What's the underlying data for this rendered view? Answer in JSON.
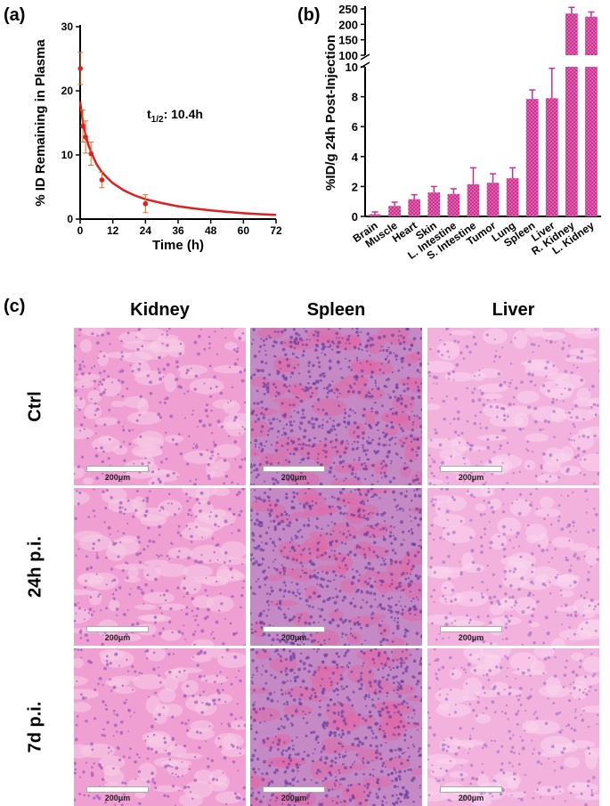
{
  "panels": {
    "a": "(a)",
    "b": "(b)",
    "c": "(c)"
  },
  "chart_data": [
    {
      "type": "line",
      "panel": "(a)",
      "xlabel": "Time (h)",
      "ylabel": "% ID Remaining in Plasma",
      "xlim": [
        0,
        72
      ],
      "ylim": [
        0,
        30
      ],
      "xticks": [
        0,
        12,
        24,
        36,
        48,
        60,
        72
      ],
      "yticks": [
        0,
        10,
        20,
        30
      ],
      "annotation": {
        "prefix": "t",
        "sub": "1/2",
        "suffix": ": 10.4h"
      },
      "points": [
        {
          "x": 0.083,
          "y": 23.5,
          "err": 2.5
        },
        {
          "x": 1,
          "y": 14.5,
          "err": 2.5
        },
        {
          "x": 2,
          "y": 12.8,
          "err": 2.5
        },
        {
          "x": 4,
          "y": 10.2,
          "err": 1.8
        },
        {
          "x": 8,
          "y": 6.1,
          "err": 1.2
        },
        {
          "x": 24,
          "y": 2.4,
          "err": 1.4
        }
      ],
      "fit": {
        "x": [
          0,
          1,
          2,
          3,
          4,
          6,
          8,
          10,
          12,
          16,
          20,
          24,
          30,
          36,
          42,
          48,
          54,
          60,
          66,
          72
        ],
        "y": [
          18.3,
          15.2,
          13.2,
          11.6,
          10.5,
          8.6,
          7.3,
          6.4,
          5.6,
          4.5,
          3.7,
          3.1,
          2.5,
          2.0,
          1.65,
          1.35,
          1.12,
          0.92,
          0.77,
          0.65
        ]
      },
      "color": "#e02020",
      "grid": false
    },
    {
      "type": "bar",
      "panel": "(b)",
      "ylabel": "%ID/g 24h Post-Injection",
      "broken_axis": true,
      "ylim_lower": [
        0,
        10
      ],
      "ylim_upper": [
        100,
        250
      ],
      "yticks_lower": [
        0,
        2,
        4,
        6,
        8,
        10
      ],
      "yticks_upper": [
        100,
        150,
        200,
        250
      ],
      "categories": [
        "Brain",
        "Muscle",
        "Heart",
        "Skin",
        "L. Intestine",
        "S. Intestine",
        "Tumor",
        "Lung",
        "Spleen",
        "Liver",
        "R. Kidney",
        "L. Kidney"
      ],
      "values": [
        0.15,
        0.7,
        1.15,
        1.6,
        1.5,
        2.15,
        2.25,
        2.55,
        7.85,
        7.9,
        235,
        225
      ],
      "errors": [
        0.15,
        0.25,
        0.3,
        0.4,
        0.35,
        1.1,
        0.6,
        0.7,
        0.6,
        2.0,
        20,
        15
      ],
      "color": "#cc2f8f",
      "pattern": "dotted",
      "grid": false
    }
  ],
  "histology": {
    "columns": [
      "Kidney",
      "Spleen",
      "Liver"
    ],
    "rows": [
      "Ctrl",
      "24h p.i.",
      "7d p.i."
    ],
    "scale_label": "200μm"
  }
}
